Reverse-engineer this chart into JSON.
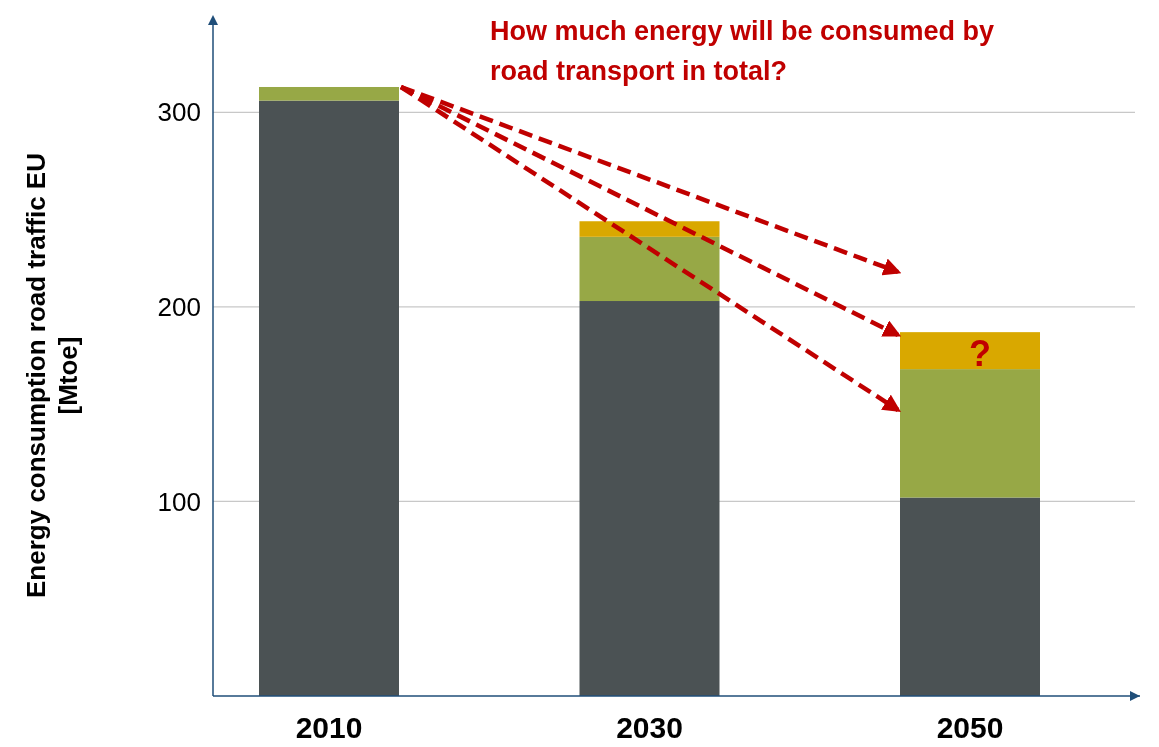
{
  "chart_data": {
    "type": "bar",
    "stacked": true,
    "title": "How much energy will be consumed by road transport in total?",
    "ylabel": "Energy consumption road traffic EU\n[Mtoe]",
    "categories": [
      "2010",
      "2030",
      "2050"
    ],
    "series": [
      {
        "color": "#4b5254",
        "values": [
          306,
          203,
          102
        ]
      },
      {
        "color": "#97a846",
        "values": [
          7,
          33,
          66
        ]
      },
      {
        "color": "#d9a800",
        "values": [
          null,
          8,
          19
        ]
      }
    ],
    "ylim": [
      0,
      350
    ],
    "yticks": [
      100,
      200,
      300
    ],
    "grid": "y",
    "annotations": [
      "?"
    ]
  }
}
